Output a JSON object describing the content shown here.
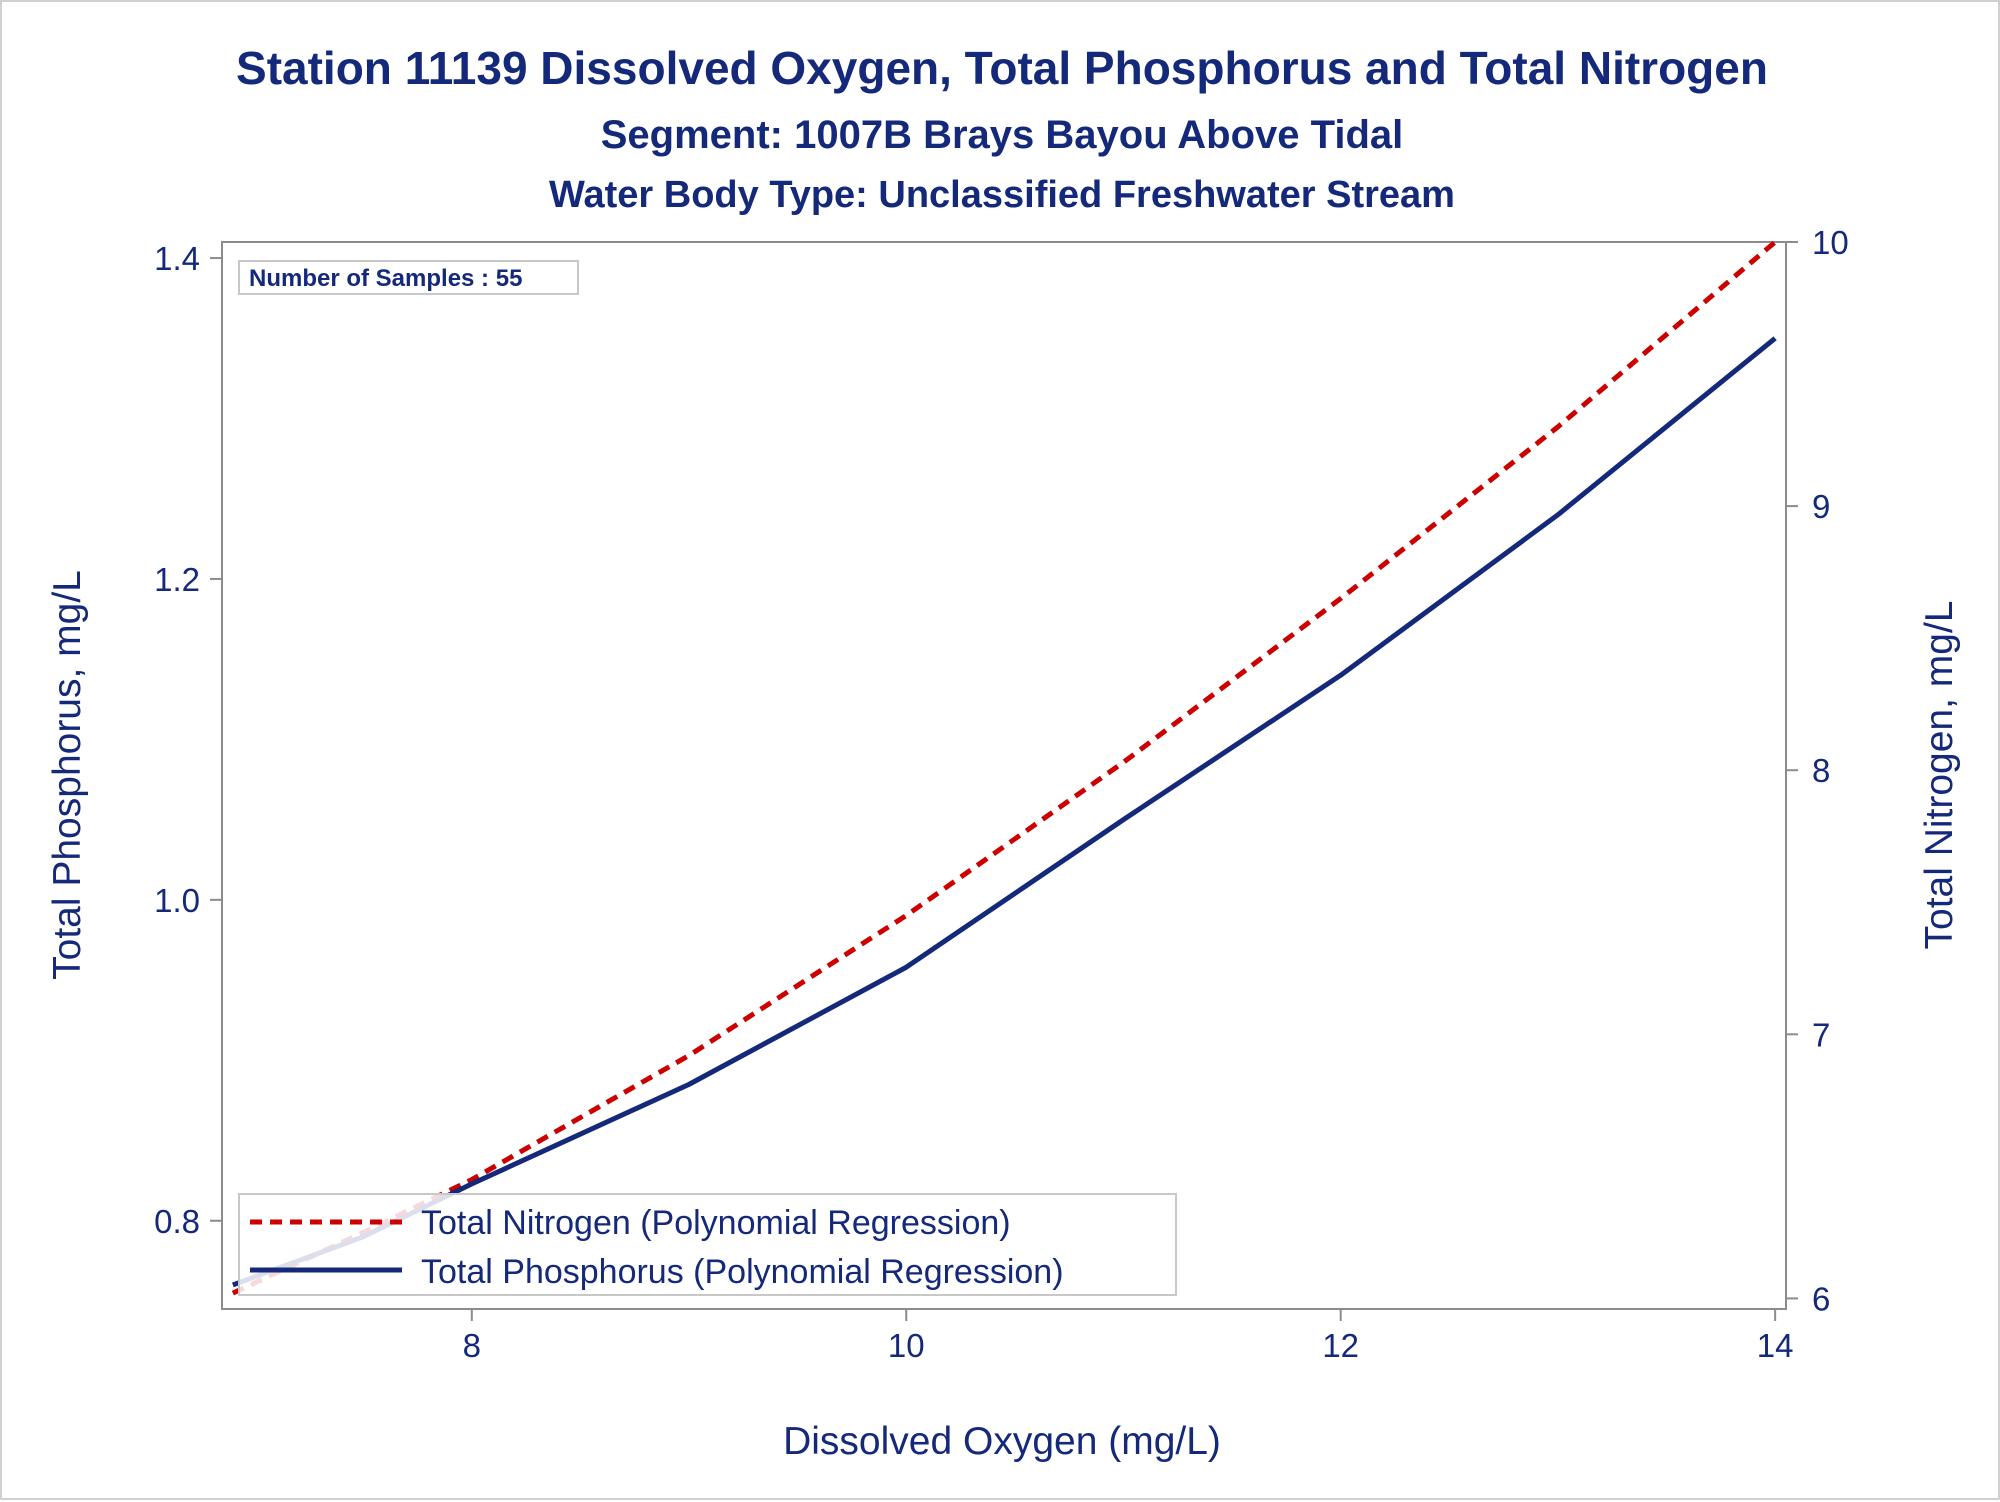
{
  "chart_data": {
    "type": "line",
    "title": "Station 11139  Dissolved Oxygen, Total Phosphorus and Total Nitrogen",
    "subtitle": "Segment: 1007B  Brays Bayou Above Tidal",
    "subtitle2": "Water Body Type: Unclassified Freshwater Stream",
    "xlabel": "Dissolved Oxygen (mg/L)",
    "ylabel": "Total Phosphorus, mg/L",
    "y2label": "Total Nitrogen, mg/L",
    "xlim": [
      6.85,
      14.05
    ],
    "ylim": [
      0.745,
      1.41
    ],
    "y2lim": [
      5.96,
      10.0
    ],
    "x_ticks": [
      "8",
      "10",
      "12",
      "14"
    ],
    "y_ticks": [
      "0.8",
      "1.0",
      "1.2",
      "1.4"
    ],
    "y2_ticks": [
      "6",
      "7",
      "8",
      "9",
      "10"
    ],
    "x_tick_values": [
      8,
      10,
      12,
      14
    ],
    "y_tick_values": [
      0.8,
      1.0,
      1.2,
      1.4
    ],
    "y2_tick_values": [
      6,
      7,
      8,
      9,
      10
    ],
    "annotation": "Number of Samples : 55",
    "legend_position": "bottom-left",
    "grid": false,
    "series": [
      {
        "name": "Total Nitrogen (Polynomial Regression)",
        "axis": "right",
        "color": "#cc0000",
        "style": "dashed",
        "x": [
          6.9,
          7.5,
          8.0,
          9.0,
          10.0,
          11.0,
          12.0,
          13.0,
          14.0
        ],
        "values": [
          6.02,
          6.25,
          6.45,
          6.92,
          7.45,
          8.03,
          8.65,
          9.3,
          10.0
        ]
      },
      {
        "name": "Total Phosphorus (Polynomial Regression)",
        "axis": "left",
        "color": "#15297a",
        "style": "solid",
        "x": [
          6.9,
          7.5,
          8.0,
          9.0,
          10.0,
          11.0,
          12.0,
          13.0,
          14.0
        ],
        "values": [
          0.76,
          0.79,
          0.823,
          0.885,
          0.958,
          1.05,
          1.14,
          1.24,
          1.35
        ]
      }
    ]
  }
}
